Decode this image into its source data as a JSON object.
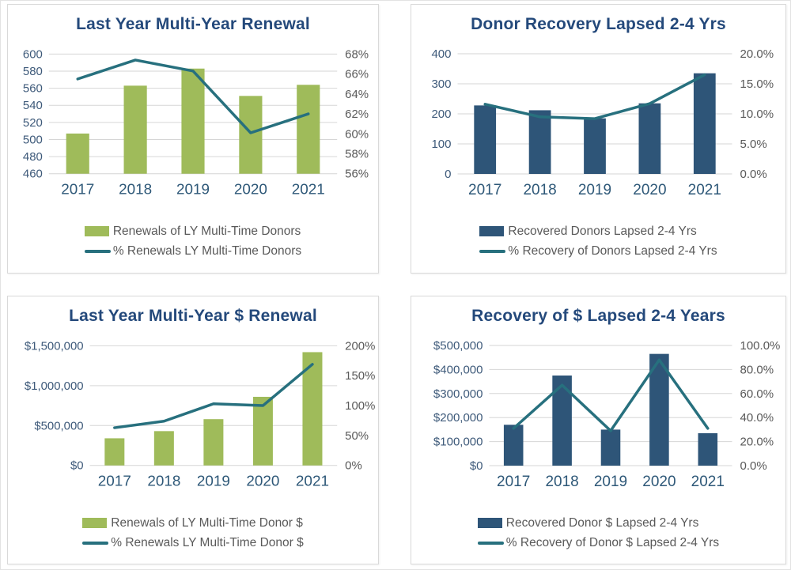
{
  "colors": {
    "bar_green": "#9fbb5a",
    "bar_navy": "#2e5578",
    "line_teal": "#27707e",
    "title_text": "#24497b",
    "left_tick_text": "#3e5a7a",
    "right_tick_text": "#595959",
    "year_text": "#2e5878",
    "legend_text": "#595959",
    "gridline": "#d6d6d6"
  },
  "chart_data": [
    {
      "type": "bar+line",
      "title": "Last Year Multi-Year Renewal",
      "categories": [
        "2017",
        "2018",
        "2019",
        "2020",
        "2021"
      ],
      "bar_series": {
        "label": "Renewals of LY Multi-Time Donors",
        "color_key": "bar_green",
        "axis": "left",
        "values": [
          507,
          563,
          583,
          551,
          564
        ]
      },
      "line_series": {
        "label": "% Renewals LY Multi-Time Donors",
        "axis": "right",
        "values": [
          65.5,
          67.4,
          66.3,
          60.1,
          62.0
        ]
      },
      "left_axis": {
        "min": 460,
        "max": 600,
        "ticks": [
          "600",
          "580",
          "560",
          "540",
          "520",
          "500",
          "480",
          "460"
        ]
      },
      "right_axis": {
        "min": 56,
        "max": 68,
        "ticks": [
          "68%",
          "66%",
          "64%",
          "62%",
          "60%",
          "58%",
          "56%"
        ]
      },
      "grid": true,
      "legend_position": "bottom"
    },
    {
      "type": "bar+line",
      "title": "Donor Recovery Lapsed 2-4 Yrs",
      "categories": [
        "2017",
        "2018",
        "2019",
        "2020",
        "2021"
      ],
      "bar_series": {
        "label": "Recovered Donors Lapsed 2-4 Yrs",
        "color_key": "bar_navy",
        "axis": "left",
        "values": [
          228,
          212,
          185,
          235,
          335
        ]
      },
      "line_series": {
        "label": "% Recovery of Donors Lapsed 2-4 Yrs",
        "axis": "right",
        "values": [
          11.6,
          9.5,
          9.2,
          11.7,
          16.5
        ]
      },
      "left_axis": {
        "min": 0,
        "max": 400,
        "ticks": [
          "400",
          "300",
          "200",
          "100",
          "0"
        ]
      },
      "right_axis": {
        "min": 0,
        "max": 20,
        "ticks": [
          "20.0%",
          "15.0%",
          "10.0%",
          "5.0%",
          "0.0%"
        ]
      },
      "grid": true,
      "legend_position": "bottom"
    },
    {
      "type": "bar+line",
      "title": "Last Year Multi-Year $ Renewal",
      "categories": [
        "2017",
        "2018",
        "2019",
        "2020",
        "2021"
      ],
      "bar_series": {
        "label": "Renewals of LY Multi-Time Donor $",
        "color_key": "bar_green",
        "axis": "left",
        "values": [
          340000,
          430000,
          580000,
          860000,
          1420000
        ]
      },
      "line_series": {
        "label": "% Renewals LY Multi-Time Donor $",
        "axis": "right",
        "values": [
          63,
          74,
          103,
          100,
          169
        ]
      },
      "left_axis": {
        "min": 0,
        "max": 1500000,
        "ticks": [
          "$1,500,000",
          "$1,000,000",
          "$500,000",
          "$0"
        ]
      },
      "right_axis": {
        "min": 0,
        "max": 200,
        "ticks": [
          "200%",
          "150%",
          "100%",
          "50%",
          "0%"
        ]
      },
      "grid": true,
      "legend_position": "bottom"
    },
    {
      "type": "bar+line",
      "title": "Recovery of $ Lapsed 2-4 Years",
      "categories": [
        "2017",
        "2018",
        "2019",
        "2020",
        "2021"
      ],
      "bar_series": {
        "label": "Recovered Donor $ Lapsed 2-4 Yrs",
        "color_key": "bar_navy",
        "axis": "left",
        "values": [
          170000,
          375000,
          150000,
          465000,
          135000
        ]
      },
      "line_series": {
        "label": "% Recovery of Donor $ Lapsed 2-4 Yrs",
        "axis": "right",
        "values": [
          31,
          67,
          29,
          88,
          31
        ]
      },
      "left_axis": {
        "min": 0,
        "max": 500000,
        "ticks": [
          "$500,000",
          "$400,000",
          "$300,000",
          "$200,000",
          "$100,000",
          "$0"
        ]
      },
      "right_axis": {
        "min": 0,
        "max": 100,
        "ticks": [
          "100.0%",
          "80.0%",
          "60.0%",
          "40.0%",
          "20.0%",
          "0.0%"
        ]
      },
      "grid": true,
      "legend_position": "bottom"
    }
  ]
}
